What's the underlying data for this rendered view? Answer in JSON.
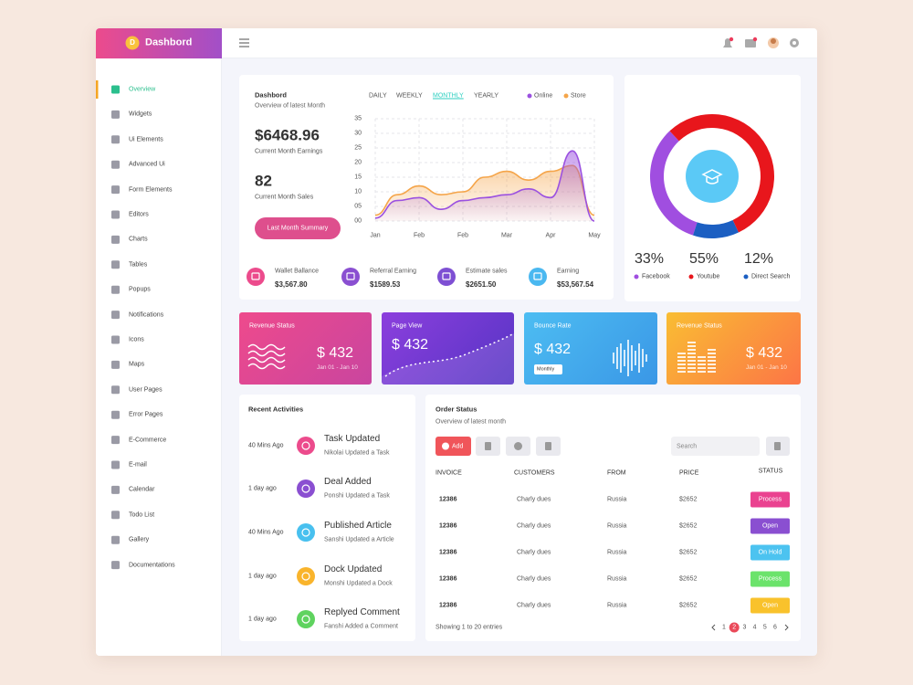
{
  "brand": "Dashbord",
  "logo_letter": "D",
  "menu": [
    "Overview",
    "Widgets",
    "Ui Elements",
    "Advanced Ui",
    "Form Elements",
    "Editors",
    "Charts",
    "Tables",
    "Popups",
    "Notifications",
    "Icons",
    "Maps",
    "User Pages",
    "Error Pages",
    "E-Commerce",
    "E-mail",
    "Calendar",
    "Todo List",
    "Gallery",
    "Documentations"
  ],
  "overview": {
    "title": "Dashbord",
    "subtitle": "Overview of latest Month",
    "tabs": [
      "DAILY",
      "WEEKLY",
      "MONTHLY",
      "YEARLY"
    ],
    "earnings": "$6468.96",
    "earnings_label": "Current Month Earnings",
    "sales": "82",
    "sales_label": "Current Month Sales",
    "button": "Last Month Summary"
  },
  "chart_data": [
    {
      "type": "line",
      "x": [
        0,
        0.5,
        1,
        1.5,
        2,
        2.5,
        3,
        3.5,
        4,
        4.5,
        5
      ],
      "xlim": [
        0,
        5
      ],
      "xticks": [
        {
          "value": 0,
          "label": "Jan"
        },
        {
          "value": 1,
          "label": "Feb"
        },
        {
          "value": 2,
          "label": "Feb"
        },
        {
          "value": 3,
          "label": "Mar"
        },
        {
          "value": 4,
          "label": "Apr"
        },
        {
          "value": 5,
          "label": "May"
        }
      ],
      "ylim": [
        0,
        35
      ],
      "yticks": [
        {
          "value": 0,
          "label": "00"
        },
        {
          "value": 5,
          "label": "05"
        },
        10,
        15,
        20,
        25,
        30,
        35
      ],
      "grid": true,
      "series": [
        {
          "name": "Online",
          "color": "#9b51e0",
          "values": [
            1,
            7,
            8,
            4,
            7,
            8,
            9,
            11,
            8,
            24,
            0
          ]
        },
        {
          "name": "Store",
          "color": "#f5a54a",
          "values": [
            2,
            9,
            12,
            9,
            10,
            15,
            17,
            14,
            17,
            19,
            2
          ]
        }
      ]
    },
    {
      "type": "pie",
      "donut": true,
      "categories": [
        "Facebook",
        "Youtube",
        "Direct Search"
      ],
      "values": [
        33,
        55,
        12
      ],
      "value_labels": [
        "33%",
        "55%",
        "12%"
      ],
      "colors": [
        "#a04ee0",
        "#e8161c",
        "#1c5fc2"
      ]
    }
  ],
  "stats": [
    {
      "label": "Wallet Ballance",
      "value": "$3,567.80",
      "color": "#ec4b8c"
    },
    {
      "label": "Referral Earning",
      "value": "$1589.53",
      "color": "#8a4fd1"
    },
    {
      "label": "Estimate sales",
      "value": "$2651.50",
      "color": "#7e4fd3"
    },
    {
      "label": "Earning",
      "value": "$53,567.54",
      "color": "#4ab8f0"
    }
  ],
  "cards": [
    {
      "title": "Revenue Status",
      "value": "$ 432",
      "date": "Jan 01 - Jan 10"
    },
    {
      "title": "Page View",
      "value": "$ 432"
    },
    {
      "title": "Bounce Rate",
      "value": "$ 432",
      "select": "Monthly"
    },
    {
      "title": "Revenue Status",
      "value": "$ 432",
      "date": "Jan 01 - Jan 10"
    }
  ],
  "activities": {
    "title": "Recent Activities",
    "items": [
      {
        "time": "40 Mins Ago",
        "title": "Task Updated",
        "text": "Nikolai Updated a Task",
        "color": "#ec4b8c"
      },
      {
        "time": "1 day ago",
        "title": "Deal Added",
        "text": "Ponshi Updated a Task",
        "color": "#8a4fd1"
      },
      {
        "time": "40 Mins Ago",
        "title": "Published Article",
        "text": "Sanshi Updated a Article",
        "color": "#48c0ef"
      },
      {
        "time": "1 day ago",
        "title": "Dock Updated",
        "text": "Monshi Updated a Dock",
        "color": "#f9b42c"
      },
      {
        "time": "1 day ago",
        "title": "Replyed Comment",
        "text": "Fanshi Added a Comment",
        "color": "#5fd35f"
      }
    ]
  },
  "orders": {
    "title": "Order Status",
    "subtitle": "Overview of latest month",
    "add": "Add",
    "search": "Search",
    "columns": [
      "INVOICE",
      "CUSTOMERS",
      "FROM",
      "PRICE",
      "STATUS"
    ],
    "rows": [
      {
        "invoice": "12386",
        "customer": "Charly dues",
        "from": "Russia",
        "price": "$2652",
        "status": "Process",
        "color": "#ea4290"
      },
      {
        "invoice": "12386",
        "customer": "Charly dues",
        "from": "Russia",
        "price": "$2652",
        "status": "Open",
        "color": "#8a4fd1"
      },
      {
        "invoice": "12386",
        "customer": "Charly dues",
        "from": "Russia",
        "price": "$2652",
        "status": "On Hold",
        "color": "#4cc3f0"
      },
      {
        "invoice": "12386",
        "customer": "Charly dues",
        "from": "Russia",
        "price": "$2652",
        "status": "Process",
        "color": "#6be36b"
      },
      {
        "invoice": "12386",
        "customer": "Charly dues",
        "from": "Russia",
        "price": "$2652",
        "status": "Open",
        "color": "#f9c22c"
      }
    ],
    "footer": "Showing 1 to 20 entries",
    "pages": [
      1,
      2,
      3,
      4,
      5,
      6
    ],
    "active_page": 2
  }
}
